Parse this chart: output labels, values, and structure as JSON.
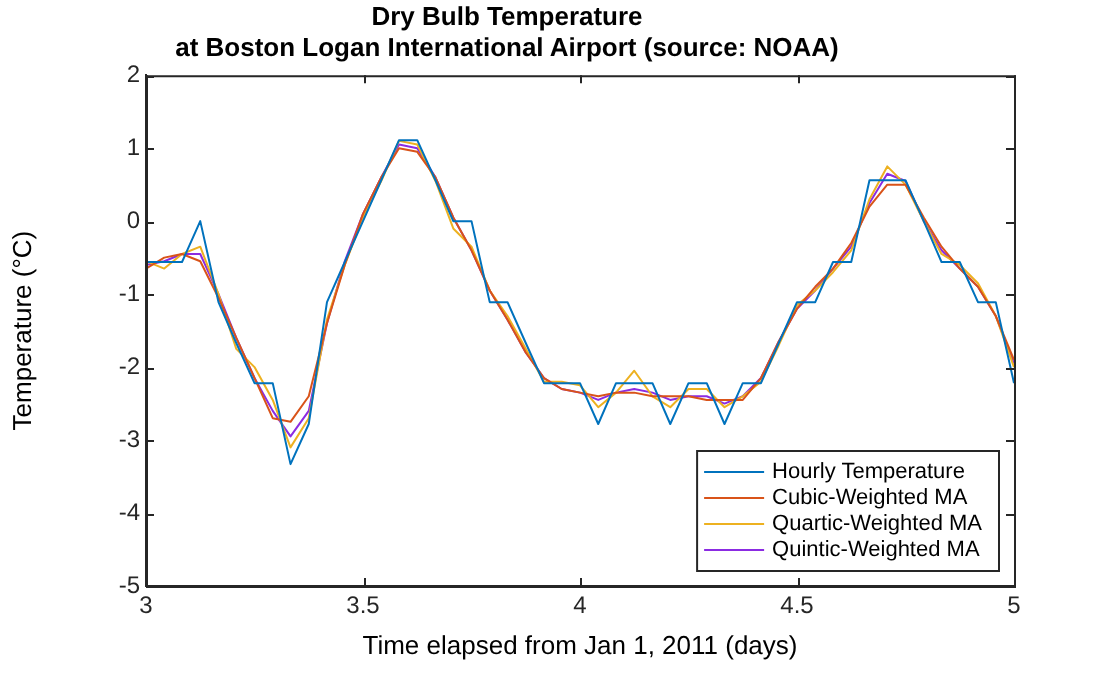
{
  "chart_data": {
    "type": "line",
    "title": "Dry Bulb Temperature",
    "subtitle": "at Boston Logan International Airport (source: NOAA)",
    "xlabel": "Time elapsed from Jan 1, 2011 (days)",
    "ylabel": "Temperature (°C)",
    "x": [
      3,
      3.042,
      3.083,
      3.125,
      3.167,
      3.208,
      3.25,
      3.292,
      3.333,
      3.375,
      3.417,
      3.458,
      3.5,
      3.542,
      3.583,
      3.625,
      3.667,
      3.708,
      3.75,
      3.792,
      3.833,
      3.875,
      3.917,
      3.958,
      4,
      4.042,
      4.083,
      4.125,
      4.167,
      4.208,
      4.25,
      4.292,
      4.333,
      4.375,
      4.417,
      4.458,
      4.5,
      4.542,
      4.583,
      4.625,
      4.667,
      4.708,
      4.75,
      4.792,
      4.833,
      4.875,
      4.917,
      4.958,
      5
    ],
    "series": [
      {
        "name": "Hourly Temperature",
        "color": "#0072bd",
        "values": [
          -0.56,
          -0.56,
          -0.56,
          0,
          -1.11,
          -1.67,
          -2.22,
          -2.22,
          -3.33,
          -2.78,
          -1.11,
          -0.56,
          0,
          0.56,
          1.11,
          1.11,
          0.56,
          0,
          0,
          -1.11,
          -1.11,
          -1.67,
          -2.22,
          -2.22,
          -2.22,
          -2.78,
          -2.22,
          -2.22,
          -2.22,
          -2.78,
          -2.22,
          -2.22,
          -2.78,
          -2.22,
          -2.22,
          -1.67,
          -1.11,
          -1.11,
          -0.56,
          -0.56,
          0.56,
          0.56,
          0.56,
          0,
          -0.56,
          -0.56,
          -1.11,
          -1.11,
          -2.22
        ]
      },
      {
        "name": "Cubic-Weighted MA",
        "color": "#d95319",
        "values": [
          -0.65,
          -0.5,
          -0.45,
          -0.55,
          -1.05,
          -1.6,
          -2.15,
          -2.7,
          -2.75,
          -2.4,
          -1.4,
          -0.6,
          0.1,
          0.6,
          1.0,
          0.95,
          0.6,
          0.05,
          -0.4,
          -0.95,
          -1.35,
          -1.8,
          -2.15,
          -2.3,
          -2.35,
          -2.4,
          -2.35,
          -2.35,
          -2.4,
          -2.4,
          -2.4,
          -2.45,
          -2.45,
          -2.45,
          -2.15,
          -1.65,
          -1.2,
          -0.9,
          -0.65,
          -0.3,
          0.2,
          0.5,
          0.5,
          0.05,
          -0.35,
          -0.65,
          -0.9,
          -1.3,
          -1.9
        ]
      },
      {
        "name": "Quartic-Weighted MA",
        "color": "#edb120",
        "values": [
          -0.55,
          -0.65,
          -0.45,
          -0.35,
          -1.0,
          -1.75,
          -2.0,
          -2.45,
          -3.1,
          -2.7,
          -1.35,
          -0.6,
          0.05,
          0.55,
          1.1,
          1.05,
          0.55,
          -0.1,
          -0.35,
          -0.95,
          -1.3,
          -1.75,
          -2.2,
          -2.2,
          -2.25,
          -2.55,
          -2.35,
          -2.05,
          -2.4,
          -2.55,
          -2.3,
          -2.3,
          -2.55,
          -2.4,
          -2.2,
          -1.7,
          -1.15,
          -0.95,
          -0.7,
          -0.4,
          0.3,
          0.75,
          0.5,
          0.0,
          -0.45,
          -0.6,
          -0.85,
          -1.3,
          -2.0
        ]
      },
      {
        "name": "Quintic-Weighted MA",
        "color": "#8b2be2",
        "values": [
          -0.6,
          -0.55,
          -0.45,
          -0.45,
          -1.0,
          -1.6,
          -2.15,
          -2.6,
          -2.95,
          -2.6,
          -1.4,
          -0.55,
          0.1,
          0.6,
          1.05,
          1.0,
          0.6,
          0.05,
          -0.4,
          -0.95,
          -1.35,
          -1.8,
          -2.15,
          -2.3,
          -2.35,
          -2.45,
          -2.35,
          -2.3,
          -2.35,
          -2.45,
          -2.4,
          -2.4,
          -2.5,
          -2.4,
          -2.15,
          -1.65,
          -1.2,
          -0.95,
          -0.65,
          -0.35,
          0.25,
          0.65,
          0.55,
          0.0,
          -0.4,
          -0.65,
          -0.9,
          -1.3,
          -1.95
        ]
      }
    ],
    "xlim": [
      3,
      5
    ],
    "xticks": [
      3,
      3.5,
      4,
      4.5,
      5
    ],
    "ylim": [
      -5,
      2
    ],
    "yticks": [
      -5,
      -4,
      -3,
      -2,
      -1,
      0,
      1,
      2
    ],
    "legend": "bottom right",
    "marker": "none",
    "line_style": "solid"
  }
}
